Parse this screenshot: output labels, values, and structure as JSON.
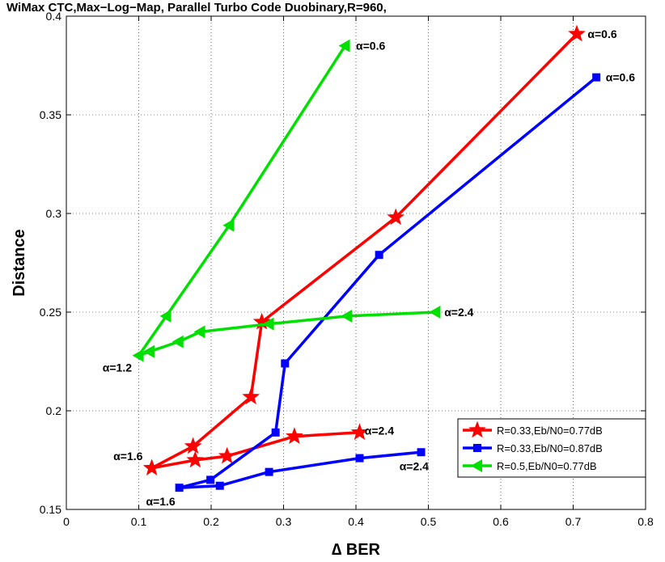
{
  "chart_data": {
    "type": "line",
    "title": "WiMax CTC,Max−Log−Map, Parallel Turbo Code Duobinary,R=960,",
    "xlabel": "∆ BER",
    "ylabel": "Distance",
    "xlim": [
      0,
      0.8
    ],
    "ylim": [
      0.15,
      0.4
    ],
    "xticks": [
      "0",
      "0.1",
      "0.2",
      "0.3",
      "0.4",
      "0.5",
      "0.6",
      "0.7",
      "0.8"
    ],
    "yticks": [
      "0.15",
      "0.2",
      "0.25",
      "0.3",
      "0.35",
      "0.4"
    ],
    "grid": true,
    "legend_position": "lower-right",
    "series": [
      {
        "name": "R=0.33,Eb/N0=0.77dB",
        "color": "#ff0000",
        "marker": "star",
        "x": [
          0.705,
          0.455,
          0.27,
          0.255,
          0.175,
          0.118,
          0.178,
          0.222,
          0.315,
          0.405
        ],
        "y": [
          0.391,
          0.298,
          0.245,
          0.207,
          0.182,
          0.171,
          0.175,
          0.177,
          0.187,
          0.189
        ]
      },
      {
        "name": "R=0.33,Eb/N0=0.87dB",
        "color": "#0000ff",
        "marker": "square",
        "x": [
          0.732,
          0.432,
          0.302,
          0.289,
          0.199,
          0.156,
          0.212,
          0.28,
          0.405,
          0.49
        ],
        "y": [
          0.369,
          0.279,
          0.224,
          0.189,
          0.165,
          0.161,
          0.162,
          0.169,
          0.176,
          0.179
        ]
      },
      {
        "name": "R=0.5,Eb/N0=0.77dB",
        "color": "#00e000",
        "marker": "triangle-left",
        "x": [
          0.385,
          0.225,
          0.138,
          0.1,
          0.115,
          0.155,
          0.185,
          0.28,
          0.388,
          0.51
        ],
        "y": [
          0.385,
          0.294,
          0.248,
          0.228,
          0.23,
          0.235,
          0.24,
          0.244,
          0.248,
          0.25
        ]
      }
    ],
    "annotations": [
      {
        "text": "α=0.6",
        "x": 0.72,
        "y": 0.391
      },
      {
        "text": "α=0.6",
        "x": 0.745,
        "y": 0.369
      },
      {
        "text": "α=0.6",
        "x": 0.4,
        "y": 0.385
      },
      {
        "text": "α=2.4",
        "x": 0.522,
        "y": 0.25
      },
      {
        "text": "α=1.2",
        "x": 0.05,
        "y": 0.222
      },
      {
        "text": "α=2.4",
        "x": 0.412,
        "y": 0.19
      },
      {
        "text": "α=1.6",
        "x": 0.065,
        "y": 0.177
      },
      {
        "text": "α=2.4",
        "x": 0.46,
        "y": 0.172
      },
      {
        "text": "α=1.6",
        "x": 0.11,
        "y": 0.154
      }
    ]
  }
}
